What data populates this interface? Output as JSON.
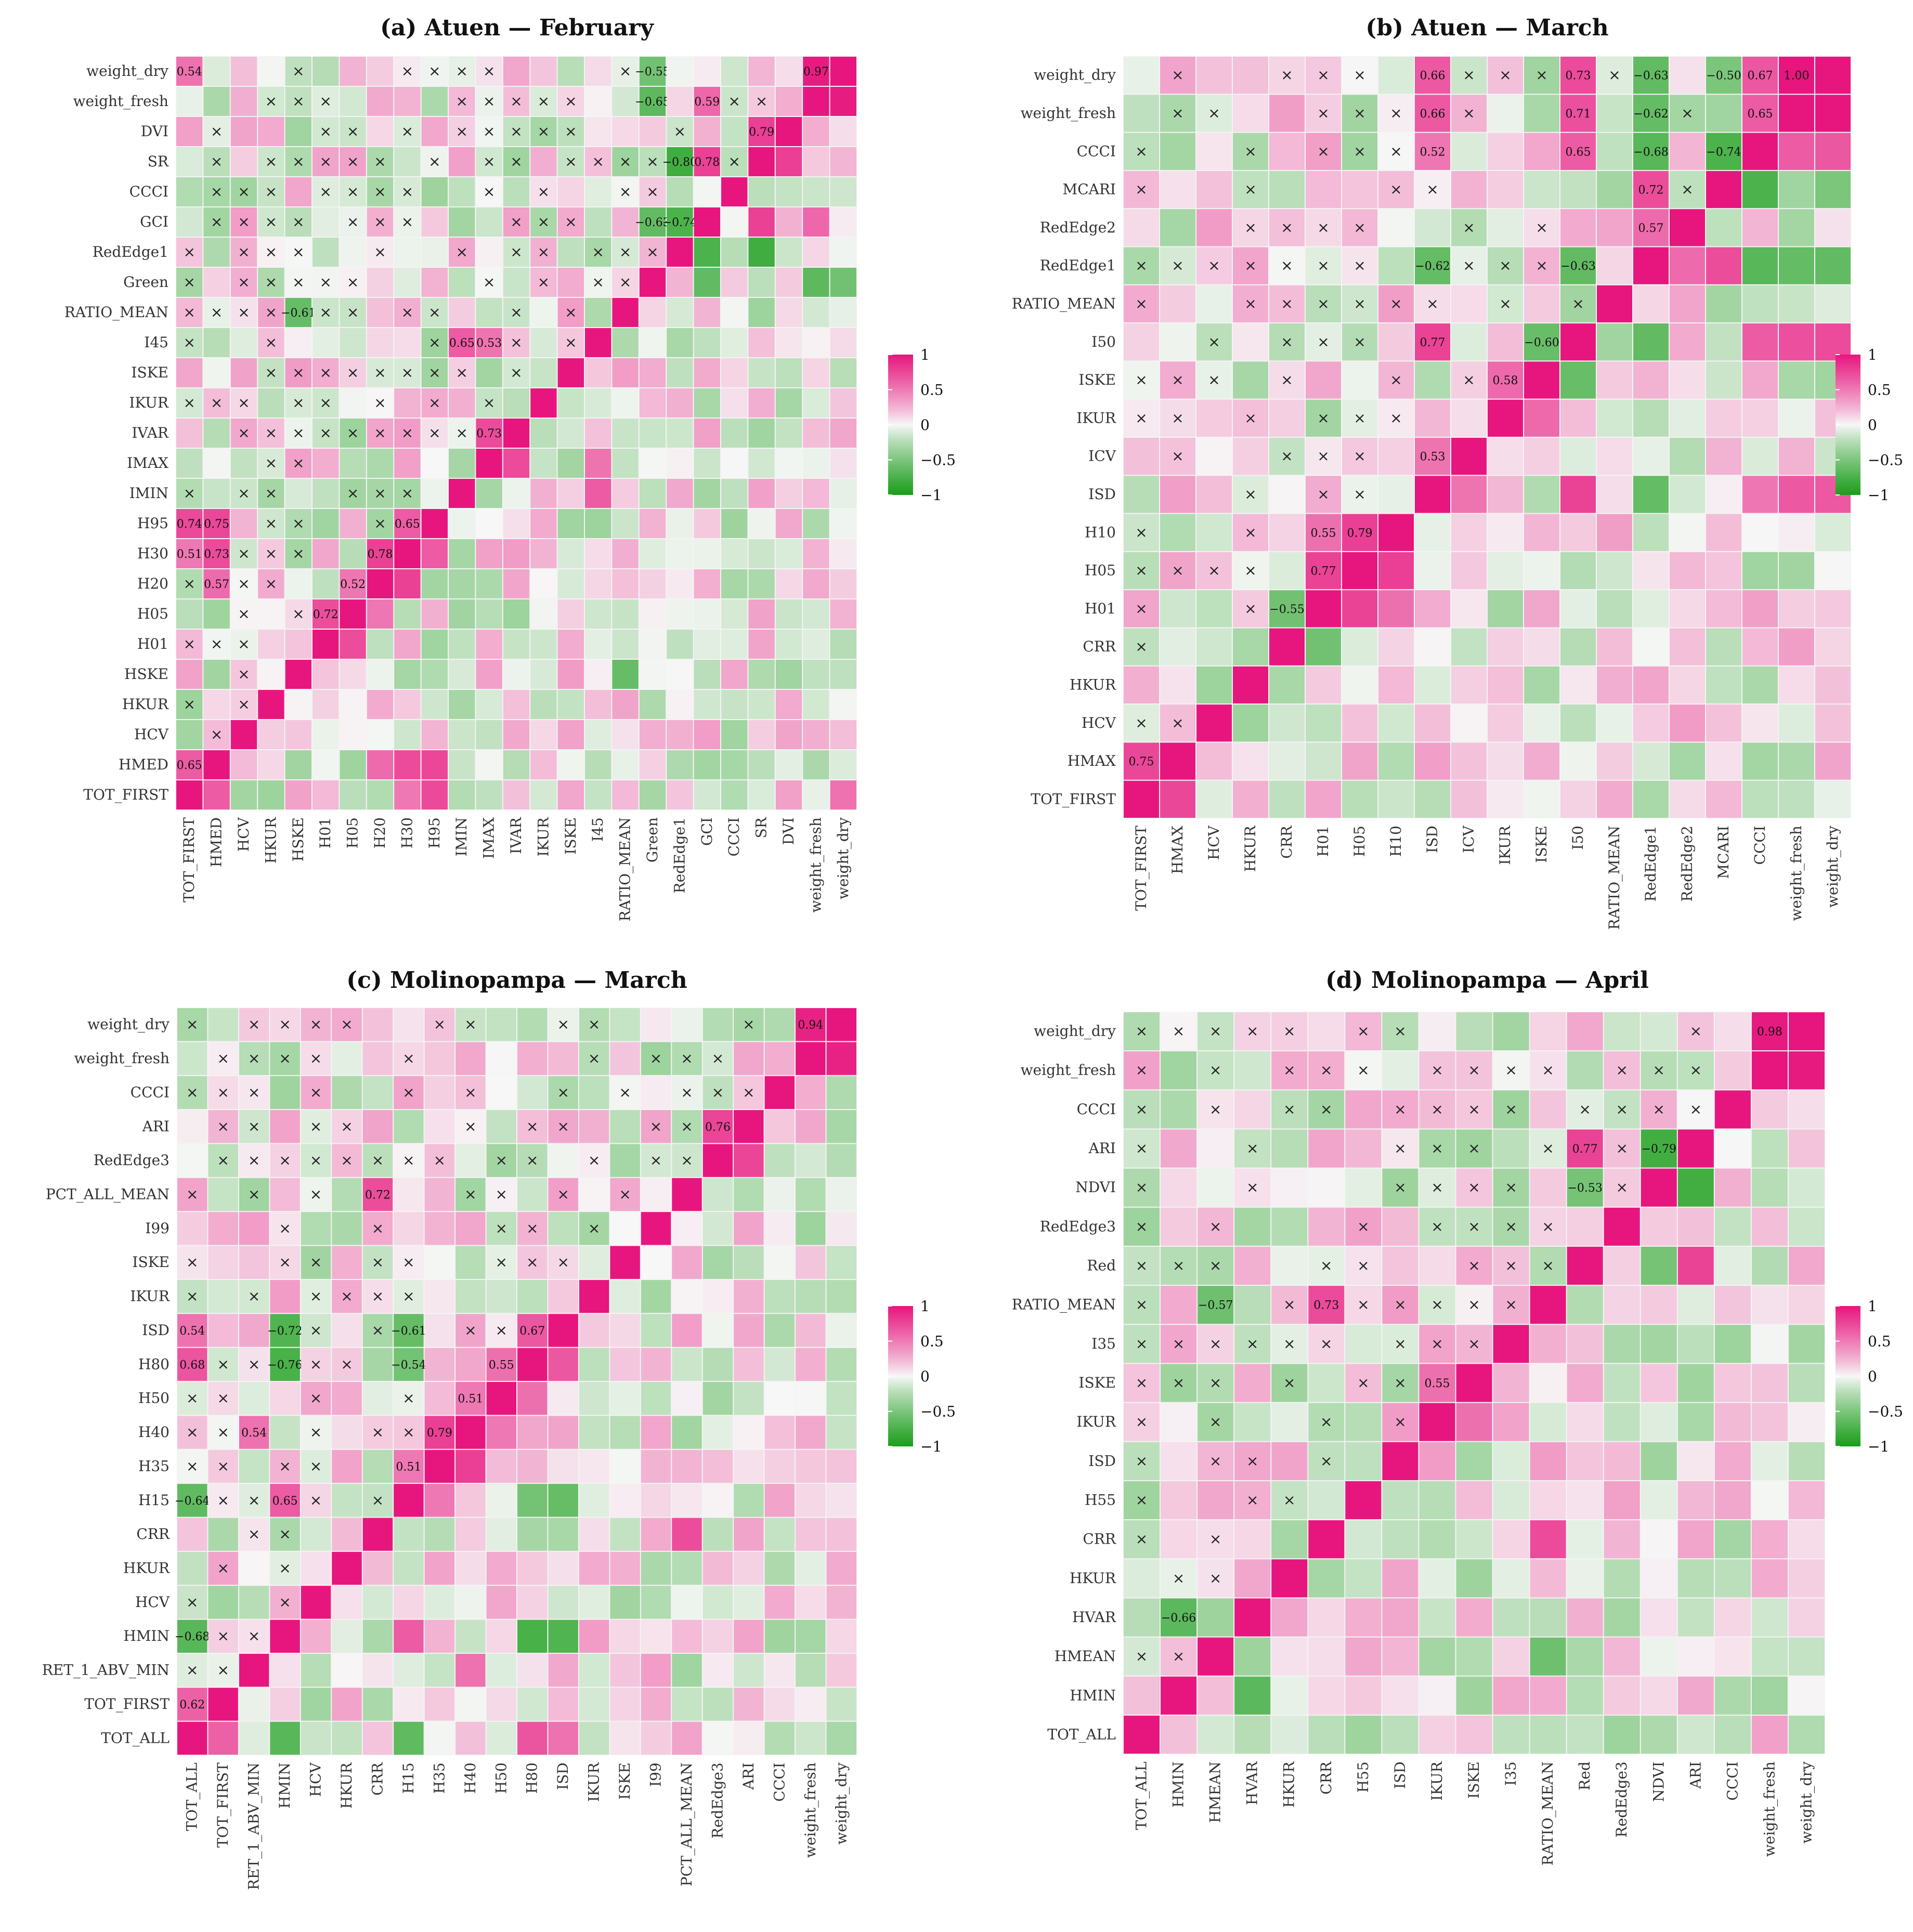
{
  "legend": {
    "ticks": [
      "1",
      "0.5",
      "0",
      "−0.5",
      "−1"
    ]
  },
  "colors": {
    "pos": "#e7167e",
    "neg": "#1a9e1a",
    "zero": "#f7f7f7"
  },
  "chart_data": [
    {
      "type": "heatmap",
      "title": "(a) Atuen — February",
      "variables": [
        "TOT_FIRST",
        "HMED",
        "HCV",
        "HKUR",
        "HSKE",
        "H01",
        "H05",
        "H20",
        "H30",
        "H95",
        "IMIN",
        "IMAX",
        "IVAR",
        "IKUR",
        "ISKE",
        "I45",
        "RATIO_MEAN",
        "Green",
        "RedEdge1",
        "GCI",
        "CCCI",
        "SR",
        "DVI",
        "weight_fresh",
        "weight_dry"
      ],
      "row_order": [
        "weight_dry",
        "weight_fresh",
        "DVI",
        "SR",
        "CCCI",
        "GCI",
        "RedEdge1",
        "Green",
        "RATIO_MEAN",
        "I45",
        "ISKE",
        "IKUR",
        "IVAR",
        "IMAX",
        "IMIN",
        "H95",
        "H30",
        "H20",
        "H05",
        "H01",
        "HSKE",
        "HKUR",
        "HCV",
        "HMED",
        "TOT_FIRST"
      ],
      "value_labels": [
        [
          "weight_fresh",
          "weight_dry",
          0.97
        ],
        [
          "SR",
          "DVI",
          0.79
        ],
        [
          "GCI",
          "SR",
          0.78
        ],
        [
          "GCI",
          "weight_fresh",
          0.59
        ],
        [
          "RedEdge1",
          "GCI",
          -0.74
        ],
        [
          "RedEdge1",
          "SR",
          -0.8
        ],
        [
          "Green",
          "GCI",
          -0.63
        ],
        [
          "Green",
          "weight_fresh",
          -0.65
        ],
        [
          "Green",
          "weight_dry",
          -0.55
        ],
        [
          "IMAX",
          "IVAR",
          0.73
        ],
        [
          "IMAX",
          "I45",
          0.53
        ],
        [
          "IMIN",
          "I45",
          0.65
        ],
        [
          "H30",
          "H95",
          0.65
        ],
        [
          "H20",
          "H30",
          0.78
        ],
        [
          "H05",
          "H20",
          0.52
        ],
        [
          "H01",
          "H05",
          0.72
        ],
        [
          "HSKE",
          "RATIO_MEAN",
          -0.61
        ],
        [
          "HMED",
          "H20",
          0.57
        ],
        [
          "HMED",
          "H30",
          0.73
        ],
        [
          "HMED",
          "H95",
          0.75
        ],
        [
          "TOT_FIRST",
          "HMED",
          0.65
        ],
        [
          "TOT_FIRST",
          "H30",
          0.51
        ],
        [
          "TOT_FIRST",
          "H95",
          0.74
        ],
        [
          "TOT_FIRST",
          "weight_dry",
          0.54
        ]
      ]
    },
    {
      "type": "heatmap",
      "title": "(b) Atuen — March",
      "variables": [
        "TOT_FIRST",
        "HMAX",
        "HCV",
        "HKUR",
        "CRR",
        "H01",
        "H05",
        "H10",
        "ISD",
        "ICV",
        "IKUR",
        "ISKE",
        "I50",
        "RATIO_MEAN",
        "RedEdge1",
        "RedEdge2",
        "MCARI",
        "CCCI",
        "weight_fresh",
        "weight_dry"
      ],
      "row_order": [
        "weight_dry",
        "weight_fresh",
        "CCCI",
        "MCARI",
        "RedEdge2",
        "RedEdge1",
        "RATIO_MEAN",
        "I50",
        "ISKE",
        "IKUR",
        "ICV",
        "ISD",
        "H10",
        "H05",
        "H01",
        "CRR",
        "HKUR",
        "HCV",
        "HMAX",
        "TOT_FIRST"
      ],
      "value_labels": [
        [
          "weight_fresh",
          "weight_dry",
          1.0
        ],
        [
          "CCCI",
          "weight_fresh",
          0.65
        ],
        [
          "CCCI",
          "weight_dry",
          0.67
        ],
        [
          "MCARI",
          "CCCI",
          -0.74
        ],
        [
          "MCARI",
          "weight_dry",
          -0.5
        ],
        [
          "RedEdge1",
          "RedEdge2",
          0.57
        ],
        [
          "RedEdge1",
          "MCARI",
          0.72
        ],
        [
          "RedEdge1",
          "CCCI",
          -0.68
        ],
        [
          "RedEdge1",
          "weight_fresh",
          -0.62
        ],
        [
          "RedEdge1",
          "weight_dry",
          -0.63
        ],
        [
          "I50",
          "RedEdge1",
          -0.63
        ],
        [
          "I50",
          "CCCI",
          0.65
        ],
        [
          "I50",
          "weight_fresh",
          0.71
        ],
        [
          "I50",
          "weight_dry",
          0.73
        ],
        [
          "ISKE",
          "I50",
          -0.6
        ],
        [
          "IKUR",
          "ISKE",
          0.58
        ],
        [
          "ISD",
          "ICV",
          0.53
        ],
        [
          "ISD",
          "I50",
          0.77
        ],
        [
          "ISD",
          "RedEdge1",
          -0.62
        ],
        [
          "ISD",
          "CCCI",
          0.52
        ],
        [
          "ISD",
          "weight_fresh",
          0.66
        ],
        [
          "ISD",
          "weight_dry",
          0.66
        ],
        [
          "H05",
          "H10",
          0.79
        ],
        [
          "H01",
          "H05",
          0.77
        ],
        [
          "H01",
          "H10",
          0.55
        ],
        [
          "CRR",
          "H01",
          -0.55
        ],
        [
          "TOT_FIRST",
          "HMAX",
          0.75
        ]
      ]
    },
    {
      "type": "heatmap",
      "title": "(c) Molinopampa — March",
      "variables": [
        "TOT_ALL",
        "TOT_FIRST",
        "RET_1_ABV_MIN",
        "HMIN",
        "HCV",
        "HKUR",
        "CRR",
        "H15",
        "H35",
        "H40",
        "H50",
        "H80",
        "ISD",
        "IKUR",
        "ISKE",
        "I99",
        "PCT_ALL_MEAN",
        "RedEdge3",
        "ARI",
        "CCCI",
        "weight_fresh",
        "weight_dry"
      ],
      "row_order": [
        "weight_dry",
        "weight_fresh",
        "CCCI",
        "ARI",
        "RedEdge3",
        "PCT_ALL_MEAN",
        "I99",
        "ISKE",
        "IKUR",
        "ISD",
        "H80",
        "H50",
        "H40",
        "H35",
        "H15",
        "CRR",
        "HKUR",
        "HCV",
        "HMIN",
        "RET_1_ABV_MIN",
        "TOT_FIRST",
        "TOT_ALL"
      ],
      "value_labels": [
        [
          "weight_fresh",
          "weight_dry",
          0.94
        ],
        [
          "RedEdge3",
          "ARI",
          0.76
        ],
        [
          "H80",
          "ISD",
          0.67
        ],
        [
          "H50",
          "H80",
          0.55
        ],
        [
          "H40",
          "H50",
          0.51
        ],
        [
          "H35",
          "H40",
          0.79
        ],
        [
          "H15",
          "H35",
          0.51
        ],
        [
          "H15",
          "H80",
          -0.54
        ],
        [
          "H15",
          "ISD",
          -0.61
        ],
        [
          "CRR",
          "PCT_ALL_MEAN",
          0.72
        ],
        [
          "HMIN",
          "H15",
          0.65
        ],
        [
          "HMIN",
          "H80",
          -0.76
        ],
        [
          "HMIN",
          "ISD",
          -0.72
        ],
        [
          "RET_1_ABV_MIN",
          "H40",
          0.54
        ],
        [
          "TOT_ALL",
          "TOT_FIRST",
          0.62
        ],
        [
          "TOT_ALL",
          "HMIN",
          -0.68
        ],
        [
          "TOT_ALL",
          "H15",
          -0.64
        ],
        [
          "TOT_ALL",
          "H80",
          0.68
        ],
        [
          "TOT_ALL",
          "ISD",
          0.54
        ]
      ]
    },
    {
      "type": "heatmap",
      "title": "(d) Molinopampa — April",
      "variables": [
        "TOT_ALL",
        "HMIN",
        "HMEAN",
        "HVAR",
        "HKUR",
        "CRR",
        "H55",
        "ISD",
        "IKUR",
        "ISKE",
        "I35",
        "RATIO_MEAN",
        "Red",
        "RedEdge3",
        "NDVI",
        "ARI",
        "CCCI",
        "weight_fresh",
        "weight_dry"
      ],
      "row_order": [
        "weight_dry",
        "weight_fresh",
        "CCCI",
        "ARI",
        "NDVI",
        "RedEdge3",
        "Red",
        "RATIO_MEAN",
        "I35",
        "ISKE",
        "IKUR",
        "ISD",
        "H55",
        "CRR",
        "HKUR",
        "HVAR",
        "HMEAN",
        "HMIN",
        "TOT_ALL"
      ],
      "value_labels": [
        [
          "weight_fresh",
          "weight_dry",
          0.98
        ],
        [
          "NDVI",
          "ARI",
          -0.79
        ],
        [
          "Red",
          "NDVI",
          -0.53
        ],
        [
          "Red",
          "ARI",
          0.77
        ],
        [
          "IKUR",
          "ISKE",
          0.55
        ],
        [
          "CRR",
          "RATIO_MEAN",
          0.73
        ],
        [
          "HMEAN",
          "RATIO_MEAN",
          -0.57
        ],
        [
          "HMIN",
          "HVAR",
          -0.66
        ]
      ]
    }
  ]
}
